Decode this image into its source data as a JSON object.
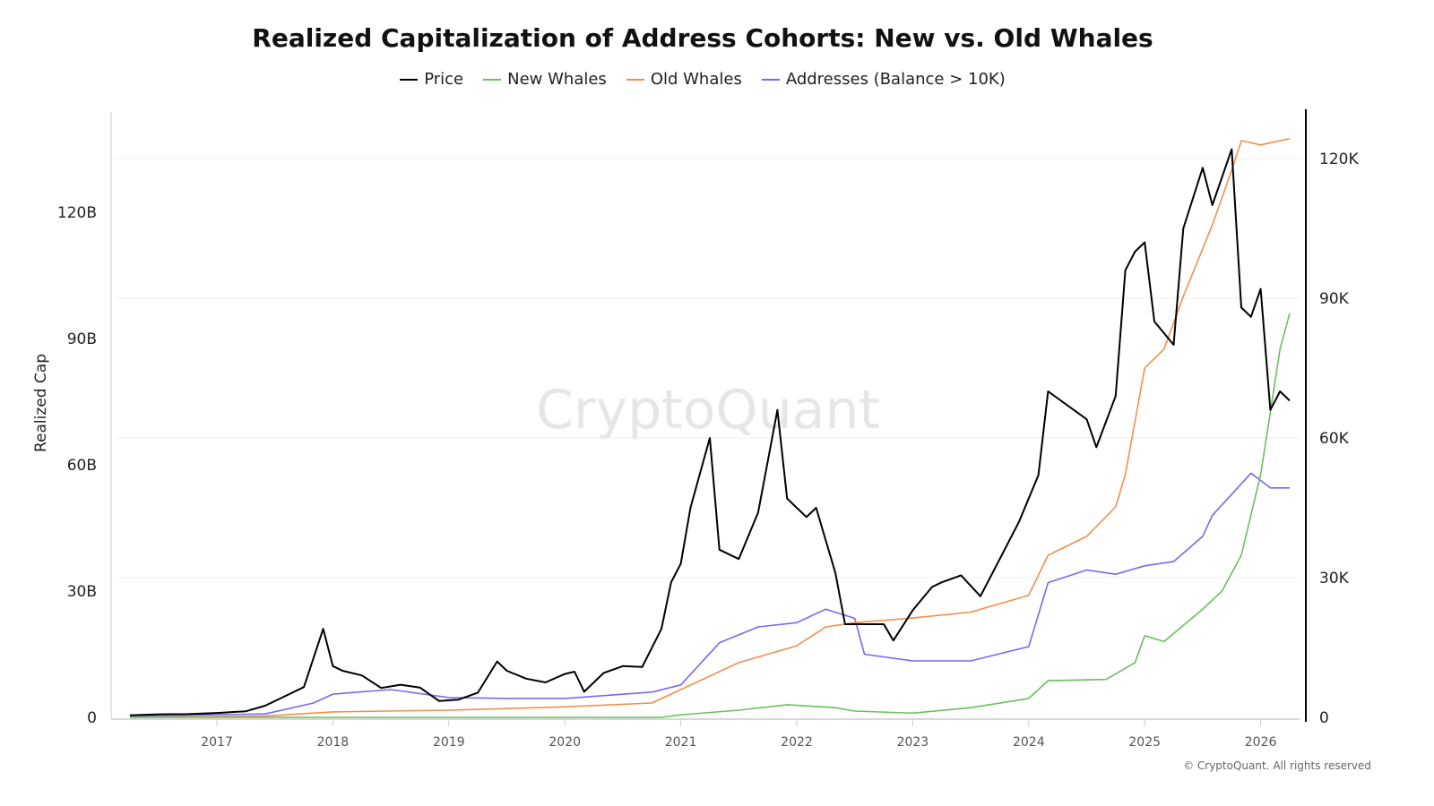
{
  "chart_data": {
    "type": "line",
    "title": "Realized Capitalization of Address Cohorts: New vs. Old Whales",
    "ylabel": "Realized Cap",
    "xlabel": "",
    "x_ticks": [
      "2017",
      "2018",
      "2019",
      "2020",
      "2021",
      "2022",
      "2023",
      "2024",
      "2025",
      "2026"
    ],
    "y_left": {
      "ticks": [
        "0",
        "30B",
        "60B",
        "90B",
        "120B"
      ],
      "ylim": [
        0,
        150
      ],
      "unit": "B"
    },
    "y_right": {
      "ticks": [
        "0",
        "30K",
        "60K",
        "90K",
        "120K"
      ],
      "ylim": [
        0,
        130
      ],
      "unit": "K"
    },
    "grid": true,
    "legend_placement": "top",
    "watermark": "CryptoQuant",
    "copyright": "© CryptoQuant. All rights reserved",
    "series": [
      {
        "name": "Price",
        "axis": "right",
        "color": "#000000",
        "x": [
          "2016-04",
          "2016-07",
          "2016-10",
          "2017-01",
          "2017-04",
          "2017-06",
          "2017-08",
          "2017-10",
          "2017-12",
          "2018-01",
          "2018-02",
          "2018-04",
          "2018-06",
          "2018-08",
          "2018-10",
          "2018-12",
          "2019-02",
          "2019-04",
          "2019-06",
          "2019-07",
          "2019-09",
          "2019-11",
          "2020-01",
          "2020-02",
          "2020-03",
          "2020-05",
          "2020-07",
          "2020-09",
          "2020-11",
          "2020-12",
          "2021-01",
          "2021-02",
          "2021-04",
          "2021-05",
          "2021-07",
          "2021-09",
          "2021-11",
          "2021-12",
          "2022-02",
          "2022-03",
          "2022-05",
          "2022-06",
          "2022-08",
          "2022-10",
          "2022-11",
          "2023-01",
          "2023-03",
          "2023-04",
          "2023-06",
          "2023-08",
          "2023-10",
          "2023-12",
          "2024-02",
          "2024-03",
          "2024-05",
          "2024-07",
          "2024-08",
          "2024-10",
          "2024-11",
          "2024-12",
          "2025-01",
          "2025-02",
          "2025-04",
          "2025-05",
          "2025-07",
          "2025-08",
          "2025-10",
          "2025-11",
          "2025-12",
          "2026-01",
          "2026-02",
          "2026-03",
          "2026-04"
        ],
        "values": [
          0.45,
          0.65,
          0.7,
          0.95,
          1.3,
          2.5,
          4.5,
          6.5,
          19,
          11,
          10,
          9,
          6.3,
          7,
          6.4,
          3.5,
          3.8,
          5.3,
          12,
          10,
          8.3,
          7.5,
          9.3,
          9.8,
          5.5,
          9.5,
          11,
          10.8,
          19,
          29,
          33,
          45,
          60,
          36,
          34,
          44,
          66,
          47,
          43,
          45,
          31,
          20,
          20,
          20,
          16.5,
          23,
          28,
          29,
          30.5,
          26,
          34,
          42,
          52,
          70,
          67,
          64,
          58,
          69,
          96,
          100,
          102,
          85,
          80,
          105,
          118,
          110,
          122,
          88,
          86,
          92,
          66,
          70,
          68
        ]
      },
      {
        "name": "New Whales",
        "axis": "left",
        "color": "#6abf5e",
        "x": [
          "2016-04",
          "2020-11",
          "2021-01",
          "2021-07",
          "2021-12",
          "2022-05",
          "2022-07",
          "2023-01",
          "2023-07",
          "2024-01",
          "2024-03",
          "2024-09",
          "2024-12",
          "2025-01",
          "2025-03",
          "2025-07",
          "2025-09",
          "2025-11",
          "2026-01",
          "2026-02",
          "2026-03",
          "2026-04"
        ],
        "values": [
          0,
          0,
          0.6,
          1.7,
          3,
          2.3,
          1.5,
          1,
          2.3,
          4.5,
          8.7,
          9,
          13,
          19.4,
          18,
          25.7,
          30,
          38.5,
          57.7,
          72.5,
          87.5,
          96
        ]
      },
      {
        "name": "Old Whales",
        "axis": "left",
        "color": "#f0904a",
        "x": [
          "2016-04",
          "2017-06",
          "2018-01",
          "2019-01",
          "2020-01",
          "2020-10",
          "2021-01",
          "2021-07",
          "2022-01",
          "2022-04",
          "2022-07",
          "2023-01",
          "2023-07",
          "2024-01",
          "2024-03",
          "2024-07",
          "2024-10",
          "2024-11",
          "2025-01",
          "2025-03",
          "2025-05",
          "2025-08",
          "2025-10",
          "2025-11",
          "2026-01",
          "2026-04"
        ],
        "values": [
          0,
          0.3,
          1.3,
          1.7,
          2.5,
          3.4,
          6.6,
          13,
          17,
          21.5,
          22.5,
          23.6,
          25,
          29,
          38.5,
          43,
          50,
          57.7,
          83,
          87.5,
          100,
          117,
          130,
          137,
          136,
          137.5
        ]
      },
      {
        "name": "Addresses (Balance > 10K)",
        "axis": "left",
        "color": "#7b68ee",
        "x": [
          "2016-04",
          "2017-06",
          "2017-11",
          "2018-01",
          "2018-07",
          "2019-01",
          "2019-07",
          "2020-01",
          "2020-10",
          "2021-01",
          "2021-05",
          "2021-09",
          "2022-01",
          "2022-04",
          "2022-07",
          "2022-08",
          "2023-01",
          "2023-07",
          "2024-01",
          "2024-03",
          "2024-07",
          "2024-10",
          "2025-01",
          "2025-04",
          "2025-07",
          "2025-08",
          "2025-10",
          "2025-12",
          "2026-02",
          "2026-04"
        ],
        "values": [
          0.3,
          0.8,
          3.4,
          5.5,
          6.6,
          4.7,
          4.5,
          4.5,
          6,
          7.7,
          17.7,
          21.5,
          22.5,
          25.7,
          23.5,
          15,
          13.4,
          13.4,
          16.8,
          32,
          35,
          34,
          36,
          37,
          43,
          48,
          53,
          58,
          54.5,
          54.5
        ]
      }
    ]
  }
}
